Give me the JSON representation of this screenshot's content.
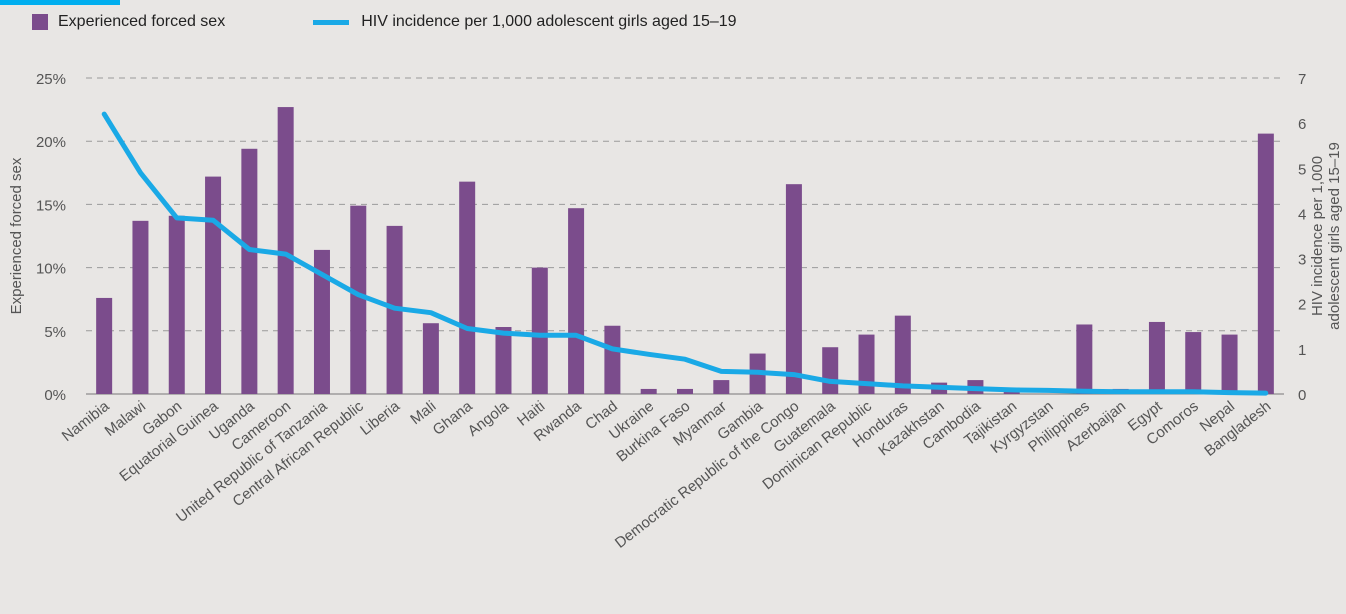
{
  "legend": {
    "bar_label": "Experienced forced sex",
    "line_label": "HIV incidence per 1,000 adolescent girls aged 15–19"
  },
  "colors": {
    "bar": "#7b4c8c",
    "line": "#1aa9e6",
    "grid": "#9a9a9a",
    "text": "#555555",
    "background": "#e8e6e4",
    "title_accent": "#00aeef"
  },
  "chart_data": {
    "type": "bar",
    "ylabel": "Experienced forced sex",
    "y2label_lines": [
      "HIV incidence per 1,000",
      "adolescent girls aged 15–19"
    ],
    "ylim": [
      0,
      25
    ],
    "y2lim": [
      0,
      7
    ],
    "yticks": [
      "0%",
      "5%",
      "10%",
      "15%",
      "20%",
      "25%"
    ],
    "y2ticks": [
      "0",
      "1",
      "2",
      "3",
      "4",
      "5",
      "6",
      "7"
    ],
    "grid": true,
    "legend_position": "top-left",
    "categories": [
      "Namibia",
      "Malawi",
      "Gabon",
      "Equatorial Guinea",
      "Uganda",
      "Cameroon",
      "United Republic of Tanzania",
      "Central African Republic",
      "Liberia",
      "Mali",
      "Ghana",
      "Angola",
      "Haiti",
      "Rwanda",
      "Chad",
      "Ukraine",
      "Burkina Faso",
      "Myanmar",
      "Gambia",
      "Democratic Republic of the Congo",
      "Guatemala",
      "Dominican Republic",
      "Honduras",
      "Kazakhstan",
      "Cambodia",
      "Tajikistan",
      "Kyrgyzstan",
      "Philippines",
      "Azerbaijan",
      "Egypt",
      "Comoros",
      "Nepal",
      "Bangladesh"
    ],
    "series": [
      {
        "name": "Experienced forced sex",
        "type": "bar",
        "axis": "left",
        "values": [
          7.6,
          13.7,
          14.1,
          17.2,
          19.4,
          22.7,
          11.4,
          14.9,
          13.3,
          5.6,
          16.8,
          5.3,
          10.0,
          14.7,
          5.4,
          0.4,
          0.4,
          1.1,
          3.2,
          16.6,
          3.7,
          4.7,
          6.2,
          0.9,
          1.1,
          0.5,
          0.0,
          5.5,
          0.4,
          5.7,
          4.9,
          4.7,
          20.6
        ]
      },
      {
        "name": "HIV incidence per 1,000 adolescent girls aged 15–19",
        "type": "line",
        "axis": "right",
        "values": [
          6.2,
          4.9,
          3.9,
          3.85,
          3.2,
          3.1,
          2.65,
          2.2,
          1.9,
          1.8,
          1.45,
          1.35,
          1.3,
          1.3,
          1.0,
          0.88,
          0.77,
          0.5,
          0.48,
          0.43,
          0.28,
          0.23,
          0.18,
          0.15,
          0.12,
          0.09,
          0.08,
          0.06,
          0.05,
          0.05,
          0.05,
          0.03,
          0.02
        ]
      }
    ]
  }
}
